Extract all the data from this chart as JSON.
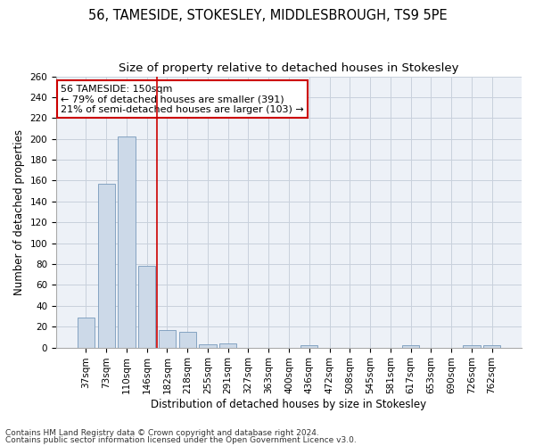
{
  "title": "56, TAMESIDE, STOKESLEY, MIDDLESBROUGH, TS9 5PE",
  "subtitle": "Size of property relative to detached houses in Stokesley",
  "xlabel": "Distribution of detached houses by size in Stokesley",
  "ylabel": "Number of detached properties",
  "bar_color": "#ccd9e8",
  "bar_edge_color": "#7799bb",
  "categories": [
    "37sqm",
    "73sqm",
    "110sqm",
    "146sqm",
    "182sqm",
    "218sqm",
    "255sqm",
    "291sqm",
    "327sqm",
    "363sqm",
    "400sqm",
    "436sqm",
    "472sqm",
    "508sqm",
    "545sqm",
    "581sqm",
    "617sqm",
    "653sqm",
    "690sqm",
    "726sqm",
    "762sqm"
  ],
  "values": [
    29,
    157,
    202,
    78,
    17,
    15,
    3,
    4,
    0,
    0,
    0,
    2,
    0,
    0,
    0,
    0,
    2,
    0,
    0,
    2,
    2
  ],
  "highlight_index": 3,
  "vline_color": "#cc0000",
  "annotation_text": "56 TAMESIDE: 150sqm\n← 79% of detached houses are smaller (391)\n21% of semi-detached houses are larger (103) →",
  "ylim": [
    0,
    260
  ],
  "yticks": [
    0,
    20,
    40,
    60,
    80,
    100,
    120,
    140,
    160,
    180,
    200,
    220,
    240,
    260
  ],
  "footer1": "Contains HM Land Registry data © Crown copyright and database right 2024.",
  "footer2": "Contains public sector information licensed under the Open Government Licence v3.0.",
  "bg_color": "#edf1f7",
  "title_fontsize": 10.5,
  "subtitle_fontsize": 9.5,
  "axis_label_fontsize": 8.5,
  "tick_fontsize": 7.5,
  "footer_fontsize": 6.5,
  "annot_fontsize": 8
}
